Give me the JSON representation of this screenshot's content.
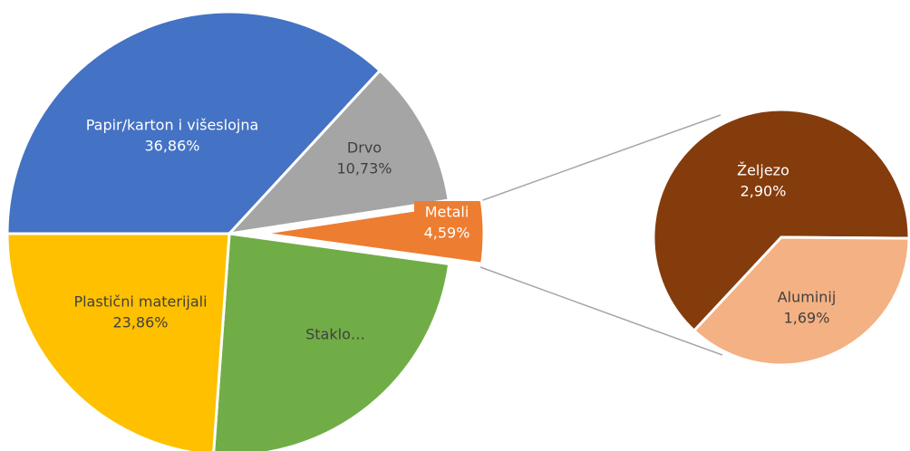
{
  "chart_data": {
    "type": "pie",
    "categories": [
      "Papir/karton i višeslojna",
      "Drvo",
      "Metali",
      "Staklo…",
      "Plastični materijali"
    ],
    "values": [
      36.86,
      10.73,
      4.59,
      23.96,
      23.86
    ],
    "value_labels": [
      "36,86%",
      "10,73%",
      "4,59%",
      null,
      "23,86%"
    ],
    "colors": [
      "#4472c4",
      "#a5a5a5",
      "#ed7d31",
      "#70ad47",
      "#ffc000"
    ],
    "secondary": {
      "categories": [
        "Željezo",
        "Aluminij"
      ],
      "values": [
        2.9,
        1.69
      ],
      "value_labels": [
        "2,90%",
        "1,69%"
      ],
      "colors": [
        "#843c0c",
        "#f4b183"
      ]
    }
  }
}
